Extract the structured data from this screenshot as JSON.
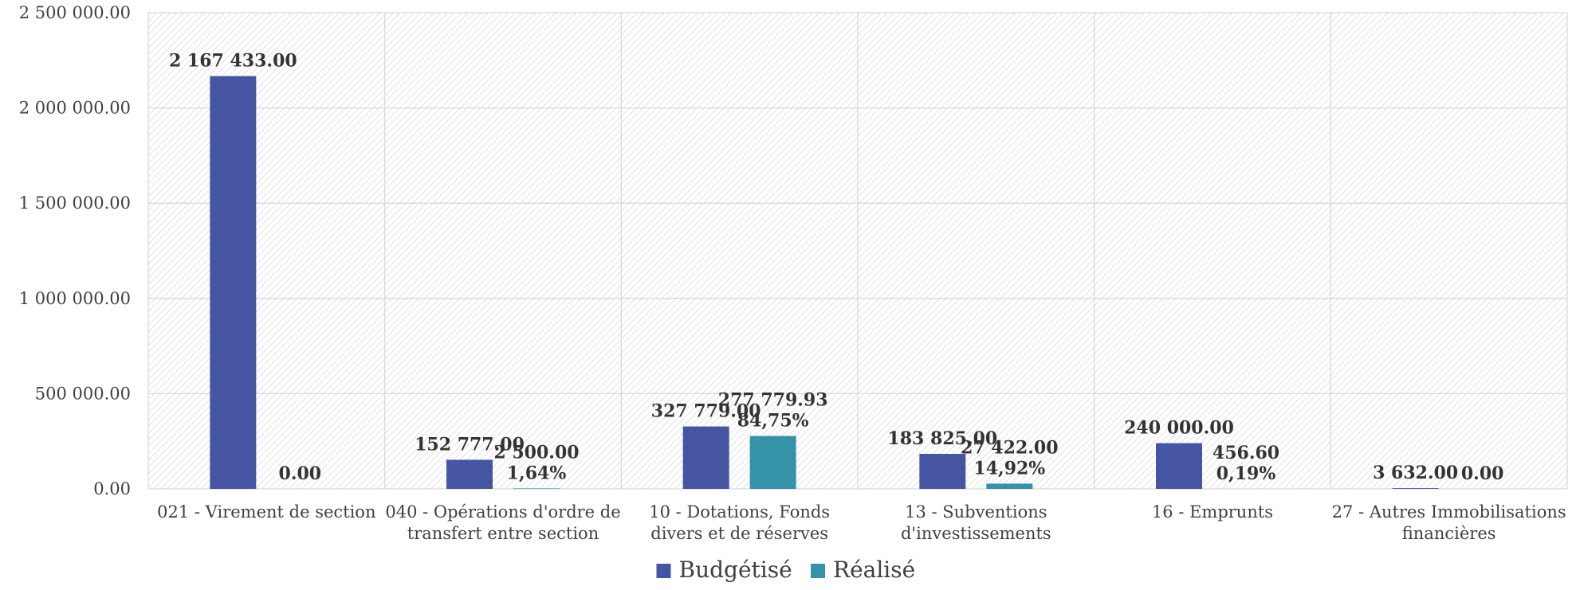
{
  "chart_data": {
    "type": "bar",
    "categories": [
      [
        "021 - Virement de section"
      ],
      [
        "040 - Opérations d'ordre de",
        "transfert entre section"
      ],
      [
        "10 - Dotations, Fonds",
        "divers et de réserves"
      ],
      [
        "13 - Subventions",
        "d'investissements"
      ],
      [
        "16 - Emprunts"
      ],
      [
        "27 - Autres Immobilisations",
        "financières"
      ]
    ],
    "series": [
      {
        "name": "Budgétisé",
        "color": "#4655A2",
        "values": [
          2167433.0,
          152777.0,
          327779.0,
          183825.0,
          240000.0,
          3632.0
        ],
        "labels": [
          [
            "2 167 433.00"
          ],
          [
            "152 777.00"
          ],
          [
            "327 779.00"
          ],
          [
            "183 825.00"
          ],
          [
            "240 000.00"
          ],
          [
            "3 632.00"
          ]
        ]
      },
      {
        "name": "Réalisé",
        "color": "#3493A8",
        "values": [
          0.0,
          2500.0,
          277779.93,
          27422.0,
          456.6,
          0.0
        ],
        "labels": [
          [
            "0.00"
          ],
          [
            "2 500.00",
            "1,64%"
          ],
          [
            "277 779.93",
            "84,75%"
          ],
          [
            "27 422.00",
            "14,92%"
          ],
          [
            "456.60",
            "0,19%"
          ],
          [
            "0.00"
          ]
        ]
      }
    ],
    "y_ticks": [
      "0.00",
      "500 000.00",
      "1 000 000.00",
      "1 500 000.00",
      "2 000 000.00",
      "2 500 000.00"
    ],
    "ylim": [
      0,
      2500000
    ],
    "grid": true,
    "legend_position": "bottom",
    "title": "",
    "xlabel": "",
    "ylabel": ""
  }
}
